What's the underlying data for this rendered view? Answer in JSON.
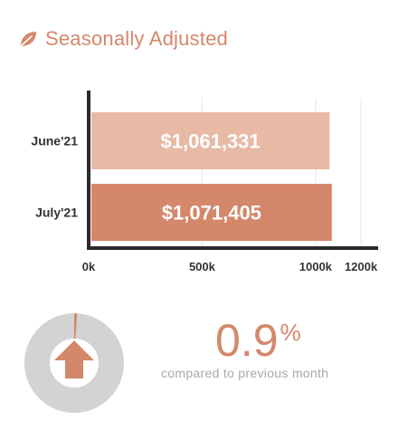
{
  "header": {
    "icon": "leaf-icon",
    "title": "Seasonally Adjusted"
  },
  "colors": {
    "accent": "#d4876a",
    "bar_june": "#e8b9a4",
    "bar_july": "#d4876a",
    "gauge_track": "#d3d3d3",
    "gauge_arrow": "#d4876a",
    "caption": "#a8a8a8"
  },
  "chart_data": {
    "type": "bar",
    "orientation": "horizontal",
    "categories": [
      "June'21",
      "July'21"
    ],
    "values": [
      1061331,
      1071405
    ],
    "data_labels": [
      "$1,061,331",
      "$1,071,405"
    ],
    "xlim": [
      0,
      1200000
    ],
    "xticks": [
      0,
      500000,
      1000000,
      1200000
    ],
    "xtick_labels": [
      "0k",
      "500k",
      "1000k",
      "1200k"
    ],
    "grid": true,
    "title": "",
    "xlabel": "",
    "ylabel": ""
  },
  "change": {
    "value": "0.9",
    "percent_symbol": "%",
    "caption": "compared to previous month",
    "direction": "up",
    "icon": "arrow-up-icon",
    "gauge_fraction": 0.009
  }
}
